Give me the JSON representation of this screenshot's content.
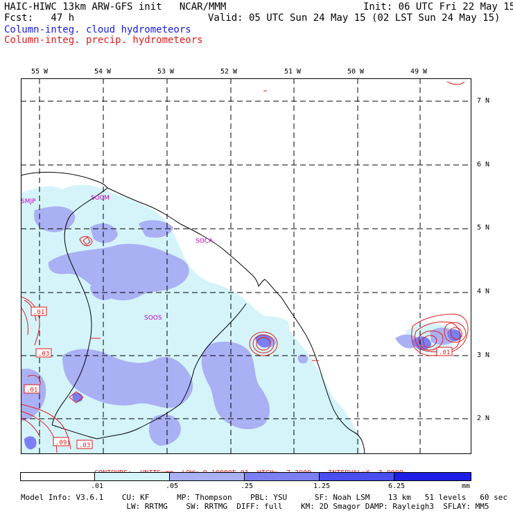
{
  "header": {
    "model_title": "HAIC-HIWC 13km ARW-GFS init   NCAR/MMM",
    "init": "Init: 06 UTC Fri 22 May 15",
    "fcst": "Fcst:   47 h",
    "valid": "Valid: 05 UTC Sun 24 May 15 (02 LST Sun 24 May 15)",
    "field_cloud": "Column-integ. cloud hydrometeors",
    "field_precip": "Column-integ. precip. hydrometeors"
  },
  "map": {
    "lon_labels": [
      "55 W",
      "54 W",
      "53 W",
      "52 W",
      "51 W",
      "50 W",
      "49 W"
    ],
    "lat_labels": [
      "7 N",
      "6 N",
      "5 N",
      "4 N",
      "3 N",
      "2 N"
    ],
    "station_labels": [
      "SMJP",
      "SOCM",
      "SOCA",
      "SOOS"
    ],
    "contour_labels": [
      ".01",
      ".03",
      ".01",
      ".09",
      ".03",
      ".01"
    ]
  },
  "contours_line": {
    "title": "CONTOURS:",
    "units": "UNITS=mm",
    "low": "LOW= 0.10000E-01",
    "high": "HIGH=  7.2900",
    "interval": "INTERVAL=X  3.0000"
  },
  "colorbar": {
    "ticks": [
      ".01",
      ".05",
      ".25",
      "1.25",
      "6.25"
    ],
    "units": "mm",
    "colors": [
      "#ffffff",
      "#d4f4fa",
      "#aab0f4",
      "#7b7ff2",
      "#4b4ef0",
      "#1e1ee6"
    ]
  },
  "footer": {
    "line1": "Model Info: V3.6.1    CU: KF      MP: Thompson    PBL: YSU      SF: Noah LSM    13 km   51 levels   60 sec",
    "line2": "                       LW: RRTMG    SW: RRTMG  DIFF: full    KM: 2D Smagor DAMP: Rayleigh3  SFLAY: MM5"
  },
  "colors": {
    "cloud_light": "#d4f4fa",
    "cloud_mid": "#aab0f4",
    "cloud_dark": "#7b7ff2",
    "contour": "#e01a1a",
    "station": "#cc00cc"
  }
}
